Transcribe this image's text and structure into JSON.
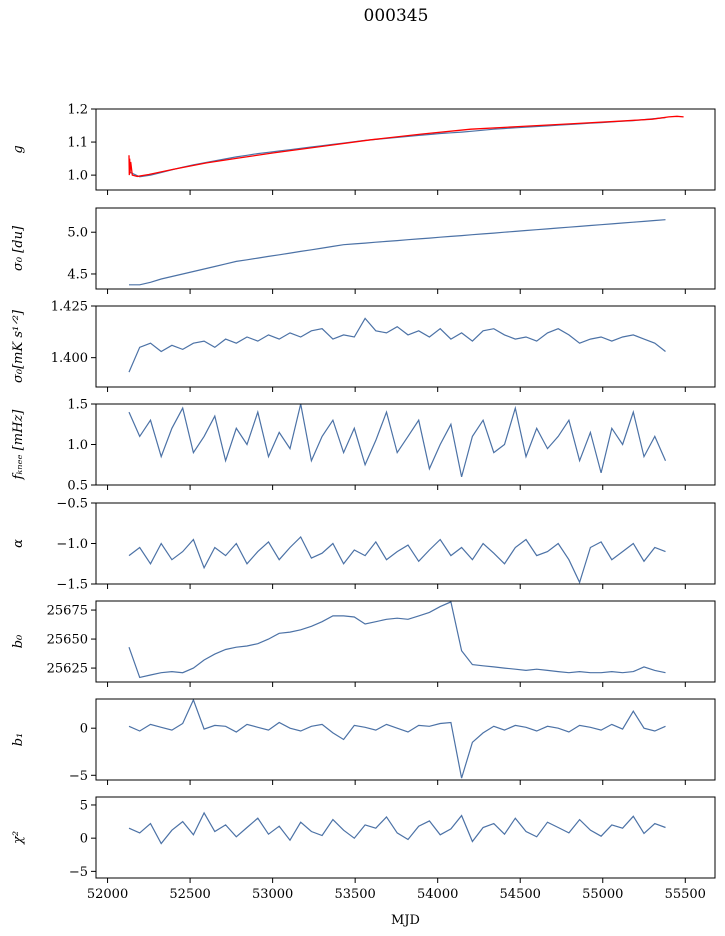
{
  "chart_data": {
    "type": "line",
    "title": "000345",
    "xlabel": "MJD",
    "xlim": [
      51930,
      55680
    ],
    "xticks": [
      52000,
      52500,
      53000,
      53500,
      54000,
      54500,
      55000,
      55500
    ],
    "xtick_labels": [
      "52000",
      "52500",
      "53000",
      "53500",
      "54000",
      "54500",
      "55000",
      "55500"
    ],
    "x_start": 52130,
    "x_step": 65,
    "line_color": "#4c72a6",
    "overlay_color": "#ff0000",
    "panels": [
      {
        "ylabel": "g",
        "ylim": [
          0.955,
          1.2
        ],
        "yticks": [
          1.0,
          1.1,
          1.2
        ],
        "ytick_labels": [
          "1.0",
          "1.1",
          "1.2"
        ],
        "series": [
          {
            "name": "g",
            "values": [
              1.01,
              0.995,
              1.0,
              1.008,
              1.016,
              1.024,
              1.031,
              1.037,
              1.043,
              1.049,
              1.055,
              1.06,
              1.065,
              1.069,
              1.073,
              1.077,
              1.081,
              1.085,
              1.089,
              1.093,
              1.097,
              1.101,
              1.105,
              1.108,
              1.111,
              1.114,
              1.117,
              1.12,
              1.123,
              1.126,
              1.128,
              1.13,
              1.133,
              1.136,
              1.139,
              1.141,
              1.143,
              1.145,
              1.147,
              1.149,
              1.151,
              1.153,
              1.155,
              1.157,
              1.159,
              1.161,
              1.163,
              1.165,
              1.168,
              1.171,
              1.174
            ]
          }
        ],
        "overlay": {
          "x": [
            52130,
            52132,
            52134,
            52136,
            52140,
            52150,
            52180,
            52250,
            52400,
            52600,
            52800,
            53000,
            53300,
            53600,
            53900,
            54200,
            54500,
            54800,
            55100,
            55300,
            55400,
            55450,
            55490
          ],
          "values": [
            1.06,
            1.0,
            1.05,
            1.005,
            1.04,
            1.0,
            0.996,
            1.002,
            1.018,
            1.037,
            1.052,
            1.067,
            1.087,
            1.107,
            1.124,
            1.139,
            1.147,
            1.155,
            1.163,
            1.169,
            1.176,
            1.178,
            1.176
          ]
        }
      },
      {
        "ylabel": "σ₀ [du]",
        "ylim": [
          4.32,
          5.29
        ],
        "yticks": [
          4.5,
          5.0
        ],
        "ytick_labels": [
          "4.5",
          "5.0"
        ],
        "series": [
          {
            "name": "sigma0_du",
            "values": [
              4.37,
              4.37,
              4.4,
              4.44,
              4.47,
              4.5,
              4.53,
              4.56,
              4.59,
              4.62,
              4.65,
              4.67,
              4.69,
              4.71,
              4.73,
              4.75,
              4.77,
              4.79,
              4.81,
              4.83,
              4.85,
              4.86,
              4.87,
              4.88,
              4.89,
              4.9,
              4.91,
              4.92,
              4.93,
              4.94,
              4.95,
              4.96,
              4.97,
              4.98,
              4.99,
              5.0,
              5.01,
              5.02,
              5.03,
              5.04,
              5.05,
              5.06,
              5.07,
              5.08,
              5.09,
              5.1,
              5.11,
              5.12,
              5.13,
              5.14,
              5.15
            ]
          }
        ]
      },
      {
        "ylabel": "σ₀[mK s¹ᐟ²]",
        "ylim": [
          1.3858,
          1.425
        ],
        "yticks": [
          1.4,
          1.425
        ],
        "ytick_labels": [
          "1.400",
          "1.425"
        ],
        "series": [
          {
            "name": "sigma0_mK",
            "values": [
              1.393,
              1.405,
              1.407,
              1.403,
              1.406,
              1.404,
              1.407,
              1.408,
              1.405,
              1.409,
              1.407,
              1.41,
              1.408,
              1.411,
              1.409,
              1.412,
              1.41,
              1.413,
              1.414,
              1.409,
              1.411,
              1.41,
              1.419,
              1.413,
              1.412,
              1.415,
              1.411,
              1.413,
              1.41,
              1.414,
              1.409,
              1.412,
              1.408,
              1.413,
              1.414,
              1.411,
              1.409,
              1.41,
              1.408,
              1.412,
              1.414,
              1.411,
              1.407,
              1.409,
              1.41,
              1.408,
              1.41,
              1.411,
              1.409,
              1.407,
              1.403
            ]
          }
        ]
      },
      {
        "ylabel": "fₖₙₑₑ [mHz]",
        "ylim": [
          0.5,
          1.5
        ],
        "yticks": [
          0.5,
          1.0,
          1.5
        ],
        "ytick_labels": [
          "0.5",
          "1.0",
          "1.5"
        ],
        "series": [
          {
            "name": "fknee",
            "values": [
              1.4,
              1.1,
              1.3,
              0.85,
              1.2,
              1.45,
              0.9,
              1.1,
              1.35,
              0.8,
              1.2,
              1.0,
              1.4,
              0.85,
              1.15,
              0.95,
              1.5,
              0.8,
              1.1,
              1.3,
              0.9,
              1.2,
              0.75,
              1.05,
              1.4,
              0.9,
              1.1,
              1.3,
              0.7,
              1.0,
              1.25,
              0.6,
              1.1,
              1.3,
              0.9,
              1.0,
              1.45,
              0.85,
              1.2,
              0.95,
              1.1,
              1.3,
              0.8,
              1.15,
              0.65,
              1.2,
              1.0,
              1.4,
              0.85,
              1.1,
              0.8
            ]
          }
        ]
      },
      {
        "ylabel": "α",
        "ylim": [
          -1.5,
          -0.5
        ],
        "yticks": [
          -1.5,
          -1.0,
          -0.5
        ],
        "ytick_labels": [
          "−1.5",
          "−1.0",
          "−0.5"
        ],
        "series": [
          {
            "name": "alpha",
            "values": [
              -1.15,
              -1.05,
              -1.25,
              -1.0,
              -1.2,
              -1.1,
              -0.95,
              -1.3,
              -1.05,
              -1.15,
              -1.0,
              -1.25,
              -1.1,
              -0.98,
              -1.2,
              -1.05,
              -0.92,
              -1.18,
              -1.12,
              -1.0,
              -1.25,
              -1.08,
              -1.15,
              -0.98,
              -1.2,
              -1.1,
              -1.02,
              -1.22,
              -1.08,
              -0.95,
              -1.15,
              -1.05,
              -1.2,
              -1.0,
              -1.12,
              -1.25,
              -1.05,
              -0.95,
              -1.15,
              -1.1,
              -1.0,
              -1.2,
              -1.48,
              -1.05,
              -0.98,
              -1.2,
              -1.1,
              -1.0,
              -1.22,
              -1.05,
              -1.1
            ]
          }
        ]
      },
      {
        "ylabel": "b₀",
        "ylim": [
          25613,
          25682.8
        ],
        "yticks": [
          25625,
          25650,
          25675
        ],
        "ytick_labels": [
          "25625",
          "25650",
          "25675"
        ],
        "series": [
          {
            "name": "b0",
            "values": [
              25643,
              25617,
              25619,
              25621,
              25622,
              25621,
              25625,
              25632,
              25637,
              25641,
              25643,
              25644,
              25646,
              25650,
              25655,
              25656,
              25658,
              25661,
              25665,
              25670,
              25670,
              25669,
              25663,
              25665,
              25667,
              25668,
              25667,
              25670,
              25673,
              25678,
              25682,
              25640,
              25628,
              25627,
              25626,
              25625,
              25624,
              25623,
              25624,
              25623,
              25622,
              25621,
              25622,
              25621,
              25621,
              25622,
              25621,
              25622,
              25626,
              25623,
              25621
            ]
          }
        ]
      },
      {
        "ylabel": "b₁",
        "ylim": [
          -5.5,
          3.1
        ],
        "yticks": [
          -5,
          0
        ],
        "ytick_labels": [
          "−5",
          "0"
        ],
        "series": [
          {
            "name": "b1",
            "values": [
              0.2,
              -0.3,
              0.4,
              0.1,
              -0.2,
              0.5,
              3.0,
              -0.1,
              0.3,
              0.2,
              -0.4,
              0.4,
              0.1,
              -0.2,
              0.6,
              0.0,
              -0.3,
              0.2,
              0.4,
              -0.5,
              -1.2,
              0.3,
              0.1,
              -0.2,
              0.4,
              0.0,
              -0.4,
              0.3,
              0.2,
              0.5,
              0.6,
              -5.3,
              -1.5,
              -0.5,
              0.2,
              -0.2,
              0.3,
              0.1,
              -0.3,
              0.2,
              0.0,
              -0.4,
              0.3,
              0.1,
              -0.2,
              0.4,
              -0.1,
              1.8,
              0.0,
              -0.3,
              0.2
            ]
          }
        ]
      },
      {
        "ylabel": "χ²",
        "ylim": [
          -6,
          6.2
        ],
        "yticks": [
          -5,
          0,
          5
        ],
        "ytick_labels": [
          "−5",
          "0",
          "5"
        ],
        "series": [
          {
            "name": "chi2",
            "values": [
              1.5,
              0.8,
              2.2,
              -0.8,
              1.2,
              2.5,
              0.5,
              3.8,
              1.0,
              2.0,
              0.2,
              1.6,
              3.0,
              0.6,
              1.8,
              -0.3,
              2.4,
              1.0,
              0.4,
              2.8,
              1.2,
              0.0,
              2.0,
              1.5,
              3.2,
              0.8,
              -0.2,
              1.8,
              2.6,
              0.5,
              1.4,
              3.4,
              -0.5,
              1.6,
              2.2,
              0.6,
              3.0,
              1.0,
              0.2,
              2.4,
              1.6,
              0.8,
              2.8,
              1.2,
              0.3,
              2.0,
              1.5,
              3.3,
              0.7,
              2.2,
              1.6
            ]
          }
        ]
      }
    ]
  }
}
